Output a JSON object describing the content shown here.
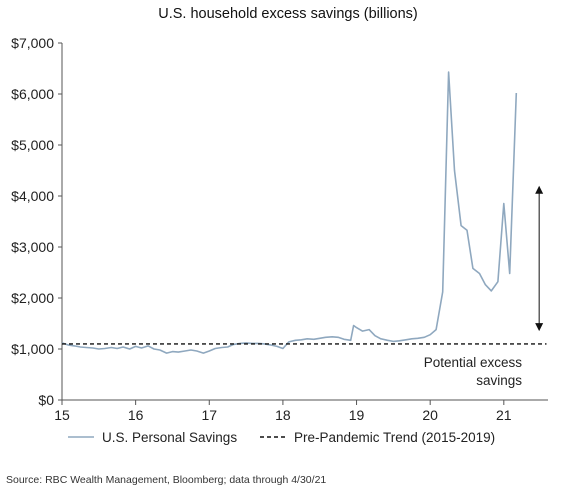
{
  "chart_data": {
    "type": "line",
    "title": "U.S. household excess savings (billions)",
    "xlabel": "",
    "ylabel": "",
    "xlim": [
      15,
      21.6
    ],
    "ylim": [
      0,
      7000
    ],
    "x_ticks": [
      {
        "value": 15,
        "label": "15"
      },
      {
        "value": 16,
        "label": "16"
      },
      {
        "value": 17,
        "label": "17"
      },
      {
        "value": 18,
        "label": "18"
      },
      {
        "value": 19,
        "label": "19"
      },
      {
        "value": 20,
        "label": "20"
      },
      {
        "value": 21,
        "label": "21"
      }
    ],
    "y_ticks": [
      {
        "value": 0,
        "label": "$0"
      },
      {
        "value": 1000,
        "label": "$1,000"
      },
      {
        "value": 2000,
        "label": "$2,000"
      },
      {
        "value": 3000,
        "label": "$3,000"
      },
      {
        "value": 4000,
        "label": "$4,000"
      },
      {
        "value": 5000,
        "label": "$5,000"
      },
      {
        "value": 6000,
        "label": "$6,000"
      },
      {
        "value": 7000,
        "label": "$7,000"
      }
    ],
    "grid": false,
    "legend_position": "bottom",
    "series": [
      {
        "name": "U.S. Personal Savings",
        "style": "solid",
        "color": "#8FA8BF",
        "points": [
          [
            15.0,
            1120
          ],
          [
            15.08,
            1080
          ],
          [
            15.17,
            1060
          ],
          [
            15.25,
            1040
          ],
          [
            15.33,
            1030
          ],
          [
            15.42,
            1020
          ],
          [
            15.5,
            1000
          ],
          [
            15.58,
            1010
          ],
          [
            15.67,
            1030
          ],
          [
            15.75,
            1010
          ],
          [
            15.83,
            1040
          ],
          [
            15.92,
            1000
          ],
          [
            16.0,
            1050
          ],
          [
            16.08,
            1020
          ],
          [
            16.17,
            1060
          ],
          [
            16.25,
            1000
          ],
          [
            16.33,
            980
          ],
          [
            16.42,
            920
          ],
          [
            16.5,
            950
          ],
          [
            16.58,
            940
          ],
          [
            16.67,
            960
          ],
          [
            16.75,
            980
          ],
          [
            16.83,
            960
          ],
          [
            16.92,
            920
          ],
          [
            17.0,
            960
          ],
          [
            17.08,
            1010
          ],
          [
            17.17,
            1030
          ],
          [
            17.25,
            1040
          ],
          [
            17.33,
            1090
          ],
          [
            17.42,
            1110
          ],
          [
            17.5,
            1120
          ],
          [
            17.58,
            1110
          ],
          [
            17.67,
            1110
          ],
          [
            17.75,
            1100
          ],
          [
            17.83,
            1080
          ],
          [
            17.92,
            1050
          ],
          [
            18.0,
            1010
          ],
          [
            18.08,
            1140
          ],
          [
            18.17,
            1170
          ],
          [
            18.25,
            1180
          ],
          [
            18.33,
            1200
          ],
          [
            18.42,
            1190
          ],
          [
            18.5,
            1210
          ],
          [
            18.58,
            1230
          ],
          [
            18.67,
            1240
          ],
          [
            18.75,
            1230
          ],
          [
            18.83,
            1190
          ],
          [
            18.92,
            1170
          ],
          [
            18.96,
            1460
          ],
          [
            19.0,
            1420
          ],
          [
            19.08,
            1350
          ],
          [
            19.17,
            1380
          ],
          [
            19.25,
            1260
          ],
          [
            19.33,
            1200
          ],
          [
            19.42,
            1170
          ],
          [
            19.5,
            1150
          ],
          [
            19.58,
            1160
          ],
          [
            19.67,
            1180
          ],
          [
            19.75,
            1200
          ],
          [
            19.83,
            1210
          ],
          [
            19.92,
            1230
          ],
          [
            20.0,
            1280
          ],
          [
            20.08,
            1380
          ],
          [
            20.17,
            2120
          ],
          [
            20.25,
            6430
          ],
          [
            20.33,
            4500
          ],
          [
            20.42,
            3420
          ],
          [
            20.5,
            3330
          ],
          [
            20.58,
            2580
          ],
          [
            20.67,
            2480
          ],
          [
            20.75,
            2260
          ],
          [
            20.83,
            2140
          ],
          [
            20.92,
            2320
          ],
          [
            21.0,
            3850
          ],
          [
            21.08,
            2480
          ],
          [
            21.17,
            6020
          ]
        ]
      },
      {
        "name": "Pre-Pandemic Trend (2015-2019)",
        "style": "dashed",
        "color": "#111111",
        "points": [
          [
            15.0,
            1100
          ],
          [
            21.58,
            1100
          ]
        ]
      }
    ],
    "annotations": [
      {
        "type": "double-arrow",
        "x": 21.48,
        "y_from": 1350,
        "y_to": 4200
      },
      {
        "type": "text",
        "lines": [
          "Potential excess",
          "savings"
        ]
      }
    ]
  },
  "source": "Source: RBC Wealth Management,  Bloomberg;  data through 4/30/21"
}
